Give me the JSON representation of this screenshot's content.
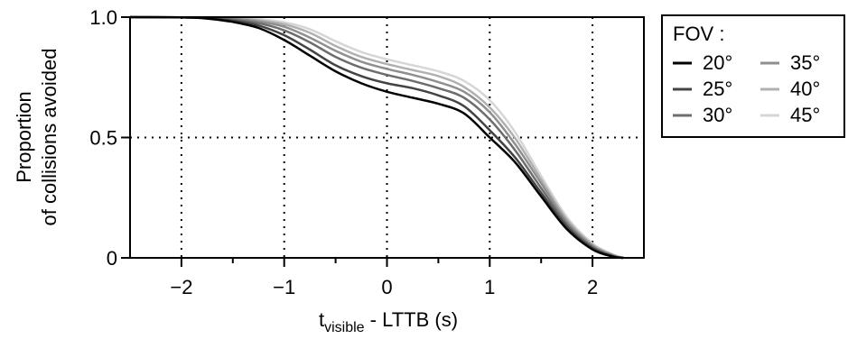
{
  "chart_data": {
    "type": "line",
    "xlabel": {
      "main": "t",
      "sub": "visible",
      "rest": " - LTTB (s)"
    },
    "ylabel": [
      "Proportion",
      "of collisions avoided"
    ],
    "xlim": [
      -2.5,
      2.5
    ],
    "ylim": [
      0,
      1
    ],
    "xticks": [
      {
        "value": -2,
        "label": "−2"
      },
      {
        "value": -1,
        "label": "−1"
      },
      {
        "value": 0,
        "label": "0"
      },
      {
        "value": 1,
        "label": "1"
      },
      {
        "value": 2,
        "label": "2"
      }
    ],
    "xminor_ticks": [
      -1.5,
      -0.5,
      0.5,
      1.5
    ],
    "yticks": [
      {
        "value": 0,
        "label": "0"
      },
      {
        "value": 0.5,
        "label": "0.5"
      },
      {
        "value": 1,
        "label": "1.0"
      }
    ],
    "reference_lines": {
      "x": [
        -2,
        -1,
        0,
        1,
        2
      ],
      "y": [
        0.5
      ],
      "style": "dotted"
    },
    "legend": {
      "title": "FOV :",
      "placement": "outside-right"
    },
    "series": [
      {
        "name": "20°",
        "color": "#000000",
        "x": [
          -2.5,
          -2,
          -1.75,
          -1.5,
          -1.25,
          -1,
          -0.75,
          -0.5,
          -0.25,
          0,
          0.25,
          0.5,
          0.75,
          1,
          1.25,
          1.5,
          1.75,
          2,
          2.2,
          2.3
        ],
        "y": [
          1.0,
          0.999,
          0.994,
          0.98,
          0.955,
          0.905,
          0.84,
          0.775,
          0.725,
          0.69,
          0.665,
          0.64,
          0.6,
          0.5,
          0.395,
          0.255,
          0.12,
          0.035,
          0.005,
          0.0
        ]
      },
      {
        "name": "25°",
        "color": "#444444",
        "x": [
          -2.5,
          -2,
          -1.75,
          -1.5,
          -1.25,
          -1,
          -0.75,
          -0.5,
          -0.25,
          0,
          0.25,
          0.5,
          0.75,
          1,
          1.25,
          1.5,
          1.75,
          2,
          2.2,
          2.3
        ],
        "y": [
          1.0,
          0.999,
          0.996,
          0.985,
          0.965,
          0.925,
          0.865,
          0.8,
          0.755,
          0.725,
          0.705,
          0.675,
          0.63,
          0.53,
          0.415,
          0.27,
          0.13,
          0.04,
          0.006,
          0.0
        ]
      },
      {
        "name": "30°",
        "color": "#6d6d6d",
        "x": [
          -2.5,
          -2,
          -1.75,
          -1.5,
          -1.25,
          -1,
          -0.75,
          -0.5,
          -0.25,
          0,
          0.25,
          0.5,
          0.75,
          1,
          1.25,
          1.5,
          1.75,
          2,
          2.2,
          2.3
        ],
        "y": [
          1.0,
          0.999,
          0.997,
          0.99,
          0.975,
          0.945,
          0.895,
          0.835,
          0.79,
          0.76,
          0.735,
          0.705,
          0.665,
          0.575,
          0.445,
          0.29,
          0.14,
          0.045,
          0.008,
          0.0
        ]
      },
      {
        "name": "35°",
        "color": "#8f8f8f",
        "x": [
          -2.5,
          -2,
          -1.75,
          -1.5,
          -1.25,
          -1,
          -0.75,
          -0.5,
          -0.25,
          0,
          0.25,
          0.5,
          0.75,
          1,
          1.25,
          1.5,
          1.75,
          2,
          2.2,
          2.3
        ],
        "y": [
          1.0,
          0.999,
          0.998,
          0.993,
          0.982,
          0.96,
          0.915,
          0.86,
          0.815,
          0.785,
          0.76,
          0.73,
          0.69,
          0.605,
          0.47,
          0.31,
          0.15,
          0.05,
          0.01,
          0.0
        ]
      },
      {
        "name": "40°",
        "color": "#b0b0b0",
        "x": [
          -2.5,
          -2,
          -1.75,
          -1.5,
          -1.25,
          -1,
          -0.75,
          -0.5,
          -0.25,
          0,
          0.25,
          0.5,
          0.75,
          1,
          1.25,
          1.5,
          1.75,
          2,
          2.2,
          2.3
        ],
        "y": [
          1.0,
          0.999,
          0.999,
          0.995,
          0.987,
          0.97,
          0.935,
          0.88,
          0.835,
          0.805,
          0.78,
          0.755,
          0.71,
          0.625,
          0.495,
          0.325,
          0.16,
          0.055,
          0.012,
          0.0
        ]
      },
      {
        "name": "45°",
        "color": "#d6d6d6",
        "x": [
          -2.5,
          -2,
          -1.75,
          -1.5,
          -1.25,
          -1,
          -0.75,
          -0.5,
          -0.25,
          0,
          0.25,
          0.5,
          0.75,
          1,
          1.25,
          1.5,
          1.75,
          2,
          2.2,
          2.3
        ],
        "y": [
          1.0,
          0.999,
          0.999,
          0.997,
          0.991,
          0.978,
          0.95,
          0.9,
          0.855,
          0.825,
          0.8,
          0.775,
          0.735,
          0.655,
          0.52,
          0.34,
          0.17,
          0.06,
          0.014,
          0.0
        ]
      }
    ]
  }
}
